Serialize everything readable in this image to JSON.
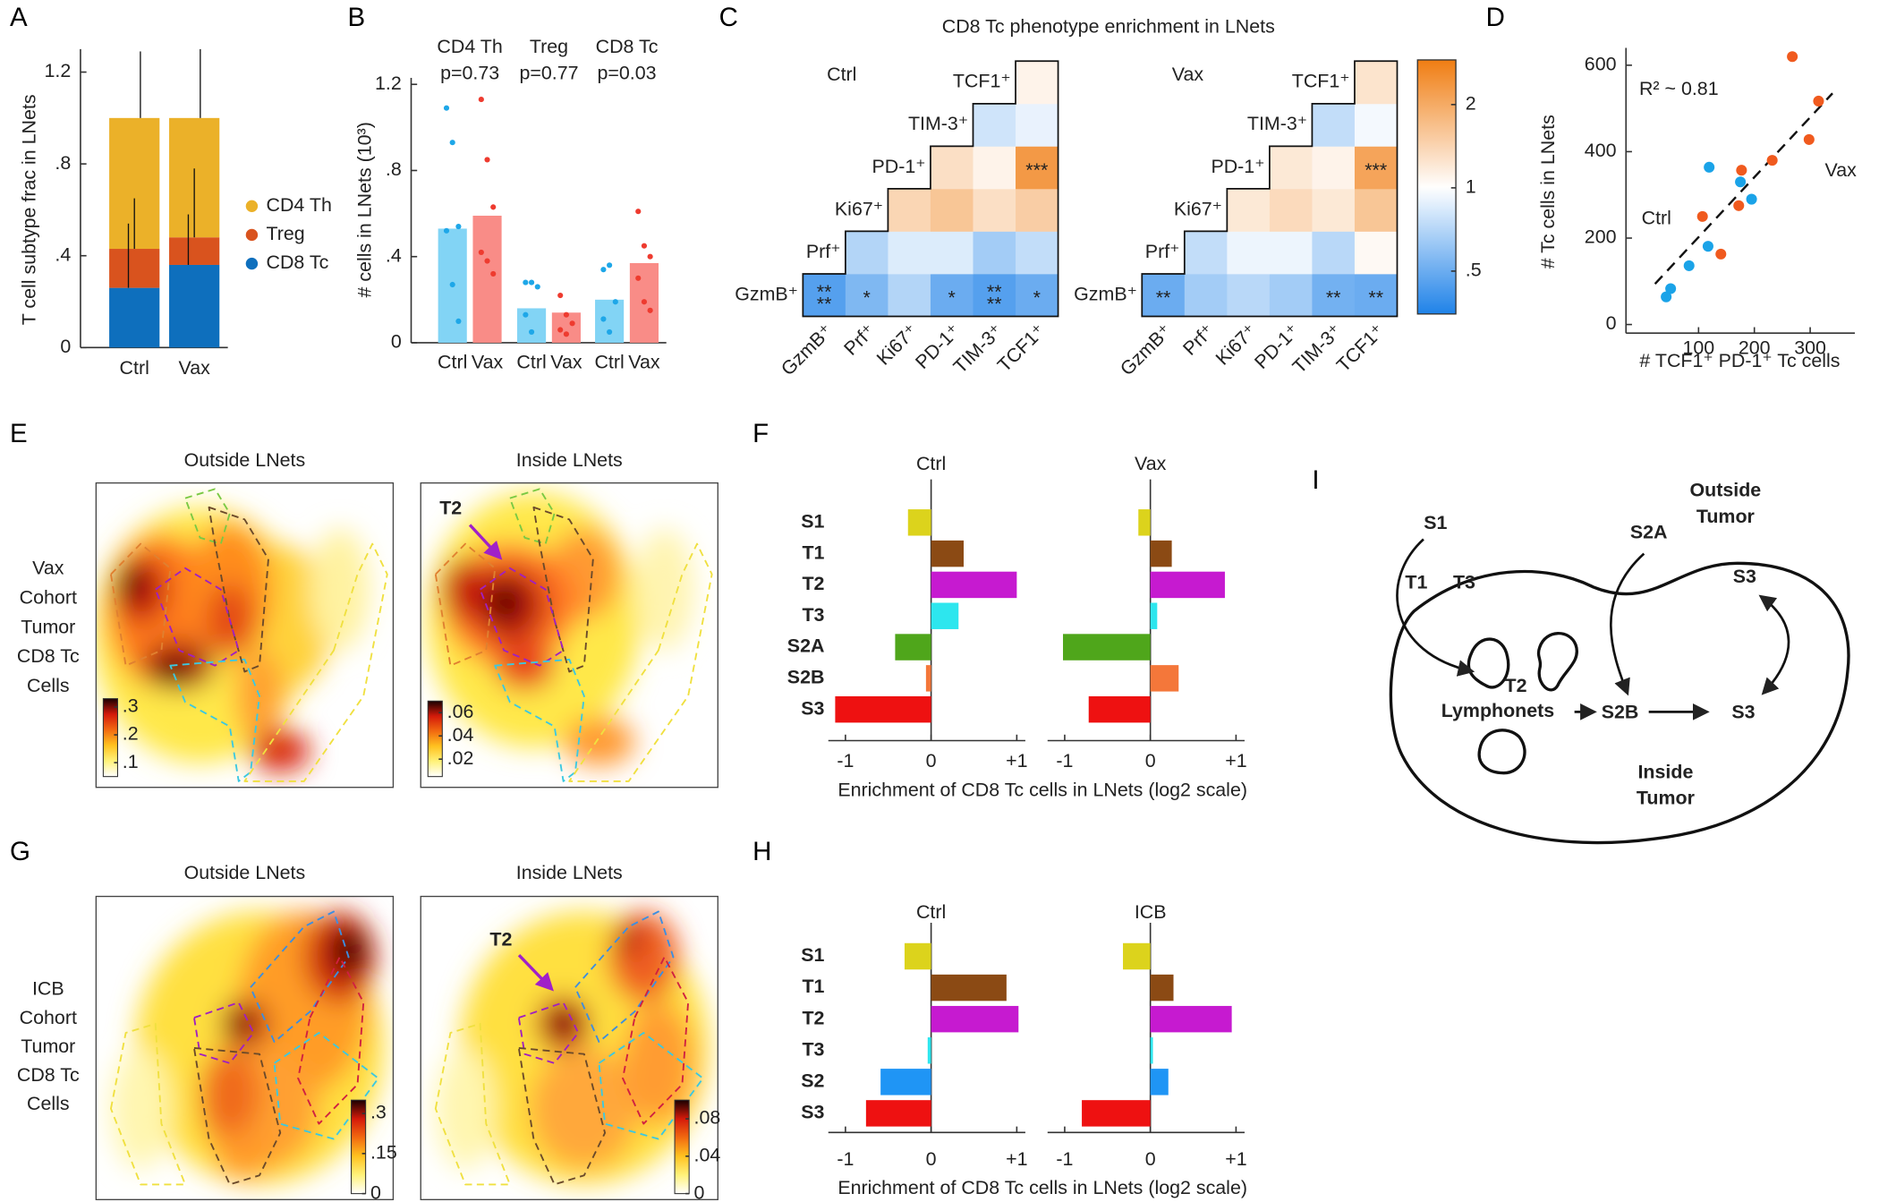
{
  "chart_data": [
    {
      "panel": "A",
      "type": "stacked_bar",
      "ylabel": "T cell subtype frac in LNets",
      "categories": [
        "Ctrl",
        "Vax"
      ],
      "series": [
        {
          "name": "CD8 Tc",
          "color": "#0e6fbd",
          "values": [
            0.26,
            0.36
          ],
          "errors": [
            0.28,
            0.22
          ]
        },
        {
          "name": "Treg",
          "color": "#d9531e",
          "values": [
            0.17,
            0.12
          ],
          "errors": [
            0.22,
            0.3
          ]
        },
        {
          "name": "CD4 Th",
          "color": "#ebb129",
          "values": [
            0.57,
            0.52
          ],
          "errors": [
            0.29,
            0.3
          ]
        }
      ],
      "ylim": [
        0,
        1.3
      ],
      "yticks": [
        0,
        {
          "value": 0.4,
          "label": ".4"
        },
        {
          "value": 0.8,
          "label": ".8"
        },
        1.2
      ]
    },
    {
      "panel": "B",
      "type": "grouped_bar_points",
      "ylabel": "# cells in LNets (10³)",
      "groups": [
        "CD4 Th",
        "Treg",
        "CD8 Tc"
      ],
      "pvalues": [
        "p=0.73",
        "p=0.77",
        "p=0.03"
      ],
      "series": [
        {
          "name": "Ctrl",
          "color": "#82d4f5",
          "point_color": "#1ea7e8",
          "values": [
            0.53,
            0.16,
            0.2
          ],
          "points": [
            [
              1.09,
              0.93,
              0.54,
              0.52,
              0.27,
              0.1
            ],
            [
              0.28,
              0.28,
              0.26,
              0.13,
              0.05
            ],
            [
              0.34,
              0.36,
              0.19,
              0.11,
              0.05
            ]
          ]
        },
        {
          "name": "Vax",
          "color": "#f98c87",
          "point_color": "#ee3b2f",
          "values": [
            0.59,
            0.14,
            0.37
          ],
          "points": [
            [
              1.13,
              0.85,
              0.63,
              0.42,
              0.38,
              0.32
            ],
            [
              0.22,
              0.13,
              0.09,
              0.06,
              0.04
            ],
            [
              0.61,
              0.45,
              0.4,
              0.3,
              0.19,
              0.15
            ]
          ]
        }
      ],
      "ylim": [
        0,
        1.23
      ],
      "yticks": [
        0,
        {
          "value": 0.4,
          "label": ".4"
        },
        {
          "value": 0.8,
          "label": ".8"
        },
        1.2
      ]
    },
    {
      "panel": "C",
      "type": "heatmap",
      "title": "CD8 Tc phenotype enrichment in LNets",
      "labels": [
        "GzmB⁺",
        "Prf⁺",
        "Ki67⁺",
        "PD-1⁺",
        "TIM-3⁺",
        "TCF1⁺"
      ],
      "log_scale": true,
      "clim": [
        0.35,
        2.9
      ],
      "cticks": [
        {
          "value": 0.5,
          "label": ".5"
        },
        1,
        2
      ],
      "colors": [
        "#1f82e8",
        "#ffffff",
        "#f07d12"
      ],
      "panels": [
        {
          "name": "Ctrl",
          "values": [
            [
              0.45,
              0.55,
              0.7,
              0.5,
              0.45,
              0.5
            ],
            [
              0.7,
              0.85,
              0.85,
              0.65,
              0.75
            ],
            [
              1.4,
              1.6,
              1.3,
              1.5
            ],
            [
              1.3,
              1.1,
              2.3
            ],
            [
              0.8,
              0.9
            ],
            [
              1.1
            ]
          ],
          "annotations": [
            [
              [
                "**",
                "**"
              ],
              [
                "*"
              ],
              null,
              [
                "*"
              ],
              [
                "**",
                "**"
              ],
              [
                "*"
              ]
            ],
            [
              null,
              null,
              null,
              null,
              null
            ],
            [
              null,
              null,
              null,
              null
            ],
            [
              null,
              null,
              [
                "***"
              ]
            ],
            [
              null,
              null
            ],
            [
              null
            ]
          ]
        },
        {
          "name": "Vax",
          "values": [
            [
              0.5,
              0.65,
              0.72,
              0.65,
              0.52,
              0.5
            ],
            [
              0.75,
              0.92,
              0.92,
              0.72,
              1.05
            ],
            [
              1.2,
              1.35,
              1.2,
              1.6
            ],
            [
              1.2,
              1.1,
              2.1
            ],
            [
              0.75,
              0.95
            ],
            [
              1.25
            ]
          ],
          "annotations": [
            [
              [
                "**"
              ],
              null,
              null,
              null,
              [
                "**"
              ],
              [
                "**"
              ]
            ],
            [
              null,
              null,
              null,
              null,
              null
            ],
            [
              null,
              null,
              null,
              null
            ],
            [
              null,
              null,
              [
                "***"
              ]
            ],
            [
              null,
              null
            ],
            [
              null
            ]
          ]
        }
      ]
    },
    {
      "panel": "D",
      "type": "scatter",
      "xlabel": "# TCF1⁺ PD-1⁺ Tc cells",
      "ylabel": "# Tc cells in LNets",
      "annotation": "R² ~ 0.81",
      "series": [
        {
          "name": "Ctrl",
          "color": "#1aa3e8",
          "x": [
            42,
            50,
            83,
            119,
            117,
            175,
            195
          ],
          "y": [
            64,
            83,
            136,
            364,
            181,
            330,
            290
          ]
        },
        {
          "name": "Vax",
          "color": "#f05a1e",
          "x": [
            107,
            140,
            172,
            177,
            232,
            268,
            298,
            315
          ],
          "y": [
            250,
            163,
            275,
            357,
            380,
            620,
            428,
            517
          ]
        }
      ],
      "fit": {
        "x": [
          22,
          340
        ],
        "y": [
          94,
          535
        ]
      },
      "xlim": [
        -30,
        380
      ],
      "ylim": [
        -20,
        640
      ],
      "xticks": [
        100,
        200,
        300
      ],
      "yticks": [
        0,
        200,
        400,
        600
      ]
    },
    {
      "panel": "E",
      "type": "density",
      "row_label": [
        "Vax",
        "Cohort",
        "Tumor",
        "CD8 Tc",
        "Cells"
      ],
      "maps": [
        {
          "title": "Outside LNets",
          "clim": [
            0.05,
            0.33
          ],
          "cticks": [
            {
              "value": 0.3,
              "label": ".3"
            },
            {
              "value": 0.2,
              "label": ".2"
            },
            {
              "value": 0.1,
              "label": ".1"
            }
          ]
        },
        {
          "title": "Inside LNets",
          "clim": [
            0.005,
            0.07
          ],
          "cticks": [
            {
              "value": 0.06,
              "label": ".06"
            },
            {
              "value": 0.04,
              "label": ".04"
            },
            {
              "value": 0.02,
              "label": ".02"
            }
          ],
          "annotation": "T2"
        }
      ]
    },
    {
      "panel": "F",
      "type": "hbar",
      "categories": [
        "S1",
        "T1",
        "T2",
        "T3",
        "S2A",
        "S2B",
        "S3"
      ],
      "colors": [
        "#dcd31c",
        "#8b4a14",
        "#c61ad0",
        "#2de6ee",
        "#4fa61b",
        "#f4773a",
        "#ee1111"
      ],
      "series": [
        {
          "name": "Ctrl",
          "values": [
            -0.27,
            0.38,
            1.0,
            0.32,
            -0.42,
            -0.06,
            -1.12
          ]
        },
        {
          "name": "Vax",
          "values": [
            -0.14,
            0.25,
            0.87,
            0.08,
            -1.02,
            0.33,
            -0.72
          ]
        }
      ],
      "xlabel": "Enrichment of CD8 Tc cells in LNets (log2 scale)",
      "xlim": [
        -1.2,
        1.1
      ],
      "xticks": [
        -1,
        0,
        {
          "value": 1,
          "label": "+1"
        }
      ]
    },
    {
      "panel": "G",
      "type": "density",
      "row_label": [
        "ICB",
        "Cohort",
        "Tumor",
        "CD8 Tc",
        "Cells"
      ],
      "maps": [
        {
          "title": "Outside LNets",
          "clim": [
            0,
            0.35
          ],
          "cticks": [
            {
              "value": 0.3,
              "label": ".3"
            },
            {
              "value": 0.15,
              "label": ".15"
            },
            0
          ]
        },
        {
          "title": "Inside LNets",
          "clim": [
            0,
            0.1
          ],
          "cticks": [
            {
              "value": 0.08,
              "label": ".08"
            },
            {
              "value": 0.04,
              "label": ".04"
            },
            0
          ],
          "annotation": "T2"
        }
      ]
    },
    {
      "panel": "H",
      "type": "hbar",
      "categories": [
        "S1",
        "T1",
        "T2",
        "T3",
        "S2",
        "S3"
      ],
      "colors": [
        "#dcd31c",
        "#8b4a14",
        "#c61ad0",
        "#2de6ee",
        "#1f95f5",
        "#ee1111"
      ],
      "series": [
        {
          "name": "Ctrl",
          "values": [
            -0.31,
            0.88,
            1.02,
            -0.04,
            -0.59,
            -0.76
          ]
        },
        {
          "name": "ICB",
          "values": [
            -0.32,
            0.27,
            0.95,
            0.03,
            0.21,
            -0.8
          ]
        }
      ],
      "xlabel": "Enrichment of CD8 Tc cells in LNets (log2 scale)",
      "xlim": [
        -1.2,
        1.1
      ],
      "xticks": [
        -1,
        0,
        {
          "value": 1,
          "label": "+1"
        }
      ]
    }
  ],
  "diagram": {
    "panel": "I",
    "outside": [
      "Outside",
      "Tumor"
    ],
    "inside": [
      "Inside",
      "Tumor"
    ],
    "lymphonets": "Lymphonets",
    "nodes": [
      {
        "label": "S1",
        "color": "#d4c21a"
      },
      {
        "label": "T1",
        "color": "#8b4a14"
      },
      {
        "label": "T3",
        "color": "#5bc8e0"
      },
      {
        "label": "S2A",
        "color": "#4fa63b"
      },
      {
        "label": "S3",
        "color": "#e8252e"
      },
      {
        "label": "T2",
        "color": "#9b3aa0"
      },
      {
        "label": "S2B",
        "color": "#f07a3a"
      },
      {
        "label": "S3",
        "color": "#e8252e"
      }
    ]
  }
}
